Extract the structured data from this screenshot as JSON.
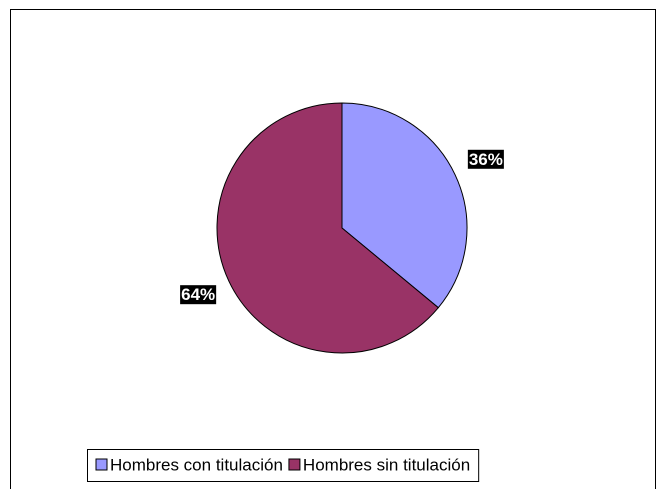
{
  "chart_data": {
    "type": "pie",
    "categories": [
      "Hombres con titulación",
      "Hombres sin titulación"
    ],
    "values": [
      36,
      64
    ],
    "value_labels": [
      "36%",
      "64%"
    ],
    "colors": [
      "#9999ff",
      "#993366"
    ],
    "legend": "bottom"
  }
}
